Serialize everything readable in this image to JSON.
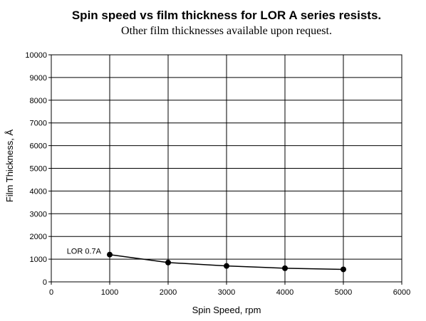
{
  "chart_data": {
    "type": "line",
    "title": "Spin speed vs film thickness for LOR A series resists.",
    "subtitle": "Other film thicknesses available upon request.",
    "xlabel": "Spin Speed, rpm",
    "ylabel": "Film Thickness, Å",
    "xlim": [
      0,
      6000
    ],
    "ylim": [
      0,
      10000
    ],
    "x_ticks": [
      0,
      1000,
      2000,
      3000,
      4000,
      5000,
      6000
    ],
    "y_ticks": [
      0,
      1000,
      2000,
      3000,
      4000,
      5000,
      6000,
      7000,
      8000,
      9000,
      10000
    ],
    "grid": true,
    "series": [
      {
        "name": "LOR 0.7A",
        "x": [
          1000,
          2000,
          3000,
          4000,
          5000
        ],
        "y": [
          1200,
          850,
          700,
          600,
          550
        ]
      }
    ]
  }
}
